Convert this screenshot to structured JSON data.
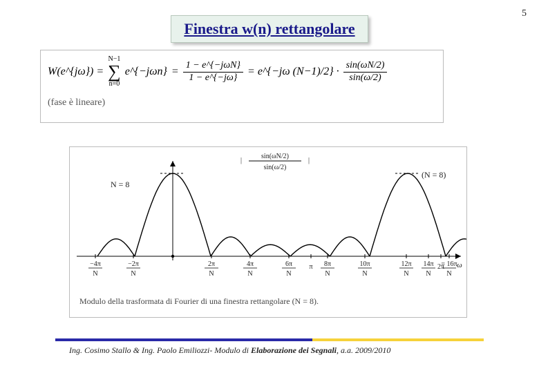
{
  "page_number": "5",
  "title": "Finestra w(n) rettangolare",
  "formula": {
    "lhs": "W(e^{jω}) =",
    "sum_upper": "N−1",
    "sum_lower": "n=0",
    "sum_body": "e^{−jωn}",
    "eq1_num": "1 − e^{−jωN}",
    "eq1_den": "1 − e^{−jω}",
    "mid_factor": "= e^{−jω (N−1)/2} ·",
    "eq2_num": "sin(ωN/2)",
    "eq2_den": "sin(ω/2)",
    "phase_note": "(fase è lineare)"
  },
  "plot": {
    "type": "line",
    "N_label_left": "N = 8",
    "N_label_right": "(N = 8)",
    "abs_label_num": "sin(ωN/2)",
    "abs_label_den": "sin(ω/2)",
    "x_axis_var": "ω",
    "x_ticks": [
      {
        "pos": -250,
        "top": "−4π",
        "bot": "N"
      },
      {
        "pos": -195,
        "top": "−2π",
        "bot": "N"
      },
      {
        "pos": -82,
        "top": "2π",
        "bot": "N"
      },
      {
        "pos": -26,
        "top": "4π",
        "bot": "N"
      },
      {
        "pos": 30,
        "top": "6π",
        "bot": "N"
      },
      {
        "pos": 62,
        "top": "π",
        "bot": ""
      },
      {
        "pos": 86,
        "top": "8π",
        "bot": "N"
      },
      {
        "pos": 140,
        "top": "10π",
        "bot": "N"
      },
      {
        "pos": 200,
        "top": "12π",
        "bot": "N"
      },
      {
        "pos": 232,
        "top": "14π",
        "bot": "N"
      },
      {
        "pos": 250,
        "top": "2π",
        "bot": ""
      },
      {
        "pos": 262,
        "top": "= 16π",
        "bot": "N"
      }
    ],
    "mainlobe_centers": [
      -138,
      202
    ],
    "mainlobe_height": 120,
    "mainlobe_halfwidth": 55,
    "sidelobe_height": 28,
    "sidelobe_halfwidth": 27,
    "background_color": "#ffffff",
    "axis_color": "#000000",
    "line_color": "#000000",
    "line_width": 1.4
  },
  "caption": "Modulo della trasformata di Fourier di una finestra rettangolare (N = 8).",
  "footer": {
    "authors": "Ing. Cosimo Stallo &  Ing. Paolo Emiliozzi-  Modulo di ",
    "course": "Elaborazione dei Segnali",
    "year": ", a.a. 2009/2010"
  },
  "colors": {
    "title_bg": "#e8f2ec",
    "title_fg": "#1a1a8a",
    "rule_blue": "#2a2aa8",
    "rule_yellow": "#f6d23a"
  }
}
